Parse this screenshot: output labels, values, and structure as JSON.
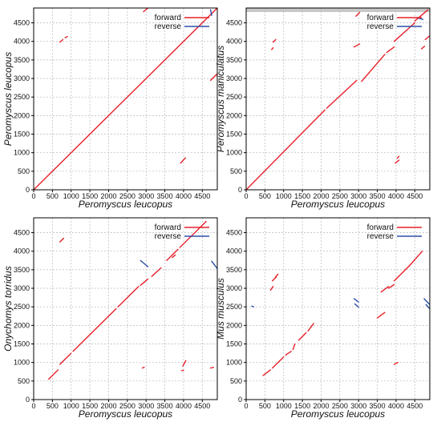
{
  "colors": {
    "forward": "#e8202a",
    "reverse": "#2a4fa8",
    "grid": "#b8b8b8",
    "axis": "#000000",
    "band": "#c8c8c8"
  },
  "chart_data": [
    {
      "type": "scatter",
      "xlabel": "Peromyscus leucopus",
      "ylabel": "Peromyscus leucopus",
      "xlim": [
        0,
        4900
      ],
      "ylim": [
        0,
        4900
      ],
      "xticks": [
        0,
        500,
        1000,
        1500,
        2000,
        2500,
        3000,
        3500,
        4000,
        4500
      ],
      "yticks": [
        0,
        500,
        1000,
        1500,
        2000,
        2500,
        3000,
        3500,
        4000,
        4500
      ],
      "grid": true,
      "legend": {
        "position": "top-right",
        "entries": [
          "forward",
          "reverse"
        ]
      },
      "series": [
        {
          "name": "forward",
          "segments": [
            [
              [
                0,
                0
              ],
              [
                4900,
                4900
              ]
            ],
            [
              [
                700,
                3980
              ],
              [
                780,
                4050
              ]
            ],
            [
              [
                840,
                4100
              ],
              [
                900,
                4130
              ]
            ],
            [
              [
                3920,
                720
              ],
              [
                4050,
                860
              ]
            ],
            [
              [
                2930,
                4800
              ],
              [
                3050,
                4900
              ]
            ],
            [
              [
                4720,
                2950
              ],
              [
                4900,
                3130
              ]
            ]
          ]
        },
        {
          "name": "reverse",
          "segments": [
            [
              [
                4720,
                4850
              ],
              [
                4750,
                4700
              ]
            ]
          ]
        }
      ]
    },
    {
      "type": "scatter",
      "xlabel": "Peromyscus leucopus",
      "ylabel": "Peromyscus maniculatus",
      "xlim": [
        0,
        4900
      ],
      "ylim": [
        0,
        4900
      ],
      "xticks": [
        0,
        500,
        1000,
        1500,
        2000,
        2500,
        3000,
        3500,
        4000,
        4500
      ],
      "yticks": [
        0,
        500,
        1000,
        1500,
        2000,
        2500,
        3000,
        3500,
        4000,
        4500
      ],
      "grid": true,
      "legend": {
        "position": "top-right",
        "entries": [
          "forward",
          "reverse"
        ]
      },
      "series": [
        {
          "name": "forward",
          "segments": [
            [
              [
                0,
                0
              ],
              [
                2100,
                2150
              ]
            ],
            [
              [
                2150,
                2200
              ],
              [
                2950,
                2950
              ]
            ],
            [
              [
                3080,
                2920
              ],
              [
                3700,
                3650
              ]
            ],
            [
              [
                3750,
                3700
              ],
              [
                3950,
                3850
              ]
            ],
            [
              [
                3950,
                4000
              ],
              [
                4500,
                4500
              ]
            ],
            [
              [
                4500,
                4550
              ],
              [
                4850,
                4850
              ]
            ],
            [
              [
                680,
                3780
              ],
              [
                720,
                3830
              ]
            ],
            [
              [
                720,
                3980
              ],
              [
                790,
                4050
              ]
            ],
            [
              [
                2880,
                3850
              ],
              [
                3030,
                3930
              ]
            ],
            [
              [
                2930,
                4680
              ],
              [
                3030,
                4780
              ]
            ],
            [
              [
                3980,
                720
              ],
              [
                4080,
                800
              ]
            ],
            [
              [
                4030,
                850
              ],
              [
                4080,
                900
              ]
            ],
            [
              [
                4680,
                3800
              ],
              [
                4760,
                3870
              ]
            ],
            [
              [
                4780,
                4050
              ],
              [
                4900,
                4150
              ]
            ]
          ]
        },
        {
          "name": "reverse",
          "segments": [
            [
              [
                4560,
                4640
              ],
              [
                4720,
                4590
              ]
            ]
          ]
        }
      ]
    },
    {
      "type": "scatter",
      "xlabel": "Peromyscus leucopus",
      "ylabel": "Onychomys torridus",
      "xlim": [
        0,
        4900
      ],
      "ylim": [
        0,
        4900
      ],
      "xticks": [
        0,
        500,
        1000,
        1500,
        2000,
        2500,
        3000,
        3500,
        4000,
        4500
      ],
      "yticks": [
        0,
        500,
        1000,
        1500,
        2000,
        2500,
        3000,
        3500,
        4000,
        4500
      ],
      "grid": true,
      "legend": {
        "position": "top-right",
        "entries": [
          "forward",
          "reverse"
        ]
      },
      "series": [
        {
          "name": "forward",
          "segments": [
            [
              [
                400,
                550
              ],
              [
                650,
                800
              ]
            ],
            [
              [
                700,
                950
              ],
              [
                1000,
                1250
              ]
            ],
            [
              [
                1050,
                1300
              ],
              [
                2200,
                2450
              ]
            ],
            [
              [
                2250,
                2500
              ],
              [
                2800,
                3050
              ]
            ],
            [
              [
                2850,
                3080
              ],
              [
                3050,
                3250
              ]
            ],
            [
              [
                3150,
                3320
              ],
              [
                3400,
                3550
              ]
            ],
            [
              [
                3550,
                3750
              ],
              [
                3850,
                4050
              ]
            ],
            [
              [
                3900,
                4100
              ],
              [
                4600,
                4800
              ]
            ],
            [
              [
                700,
                4250
              ],
              [
                800,
                4350
              ]
            ],
            [
              [
                3700,
                3830
              ],
              [
                3780,
                3900
              ]
            ],
            [
              [
                2900,
                850
              ],
              [
                2950,
                870
              ]
            ],
            [
              [
                3950,
                780
              ],
              [
                4000,
                790
              ]
            ],
            [
              [
                3980,
                900
              ],
              [
                4060,
                1050
              ]
            ],
            [
              [
                4720,
                850
              ],
              [
                4800,
                870
              ]
            ]
          ]
        },
        {
          "name": "reverse",
          "segments": [
            [
              [
                2850,
                3750
              ],
              [
                3050,
                3580
              ]
            ],
            [
              [
                4750,
                3730
              ],
              [
                4900,
                3530
              ]
            ]
          ]
        }
      ]
    },
    {
      "type": "scatter",
      "xlabel": "Peromyscus leucopus",
      "ylabel": "Mus musculus",
      "xlim": [
        0,
        4900
      ],
      "ylim": [
        0,
        4900
      ],
      "xticks": [
        0,
        500,
        1000,
        1500,
        2000,
        2500,
        3000,
        3500,
        4000,
        4500
      ],
      "yticks": [
        0,
        500,
        1000,
        1500,
        2000,
        2500,
        3000,
        3500,
        4000,
        4500
      ],
      "grid": true,
      "legend": {
        "position": "top-right",
        "entries": [
          "forward",
          "reverse"
        ]
      },
      "series": [
        {
          "name": "forward",
          "segments": [
            [
              [
                450,
                650
              ],
              [
                650,
                800
              ]
            ],
            [
              [
                700,
                850
              ],
              [
                1000,
                1150
              ]
            ],
            [
              [
                1050,
                1200
              ],
              [
                1200,
                1300
              ]
            ],
            [
              [
                1250,
                1350
              ],
              [
                1300,
                1500
              ]
            ],
            [
              [
                1400,
                1600
              ],
              [
                1600,
                1800
              ]
            ],
            [
              [
                1650,
                1850
              ],
              [
                1800,
                2050
              ]
            ],
            [
              [
                650,
                2950
              ],
              [
                720,
                3050
              ]
            ],
            [
              [
                700,
                3200
              ],
              [
                800,
                3300
              ]
            ],
            [
              [
                780,
                3300
              ],
              [
                850,
                3380
              ]
            ],
            [
              [
                3500,
                2200
              ],
              [
                3700,
                2350
              ]
            ],
            [
              [
                3600,
                2900
              ],
              [
                3800,
                3050
              ]
            ],
            [
              [
                3800,
                3000
              ],
              [
                3950,
                3100
              ]
            ],
            [
              [
                3950,
                3200
              ],
              [
                4350,
                3600
              ]
            ],
            [
              [
                4350,
                3600
              ],
              [
                4700,
                4000
              ]
            ],
            [
              [
                3950,
                950
              ],
              [
                4050,
                1000
              ]
            ]
          ]
        },
        {
          "name": "reverse",
          "segments": [
            [
              [
                150,
                2520
              ],
              [
                200,
                2500
              ]
            ],
            [
              [
                2880,
                2720
              ],
              [
                3000,
                2630
              ]
            ],
            [
              [
                2900,
                2580
              ],
              [
                3000,
                2490
              ]
            ],
            [
              [
                4750,
                2720
              ],
              [
                4900,
                2560
              ]
            ],
            [
              [
                4800,
                2560
              ],
              [
                4900,
                2450
              ]
            ]
          ]
        }
      ]
    }
  ]
}
